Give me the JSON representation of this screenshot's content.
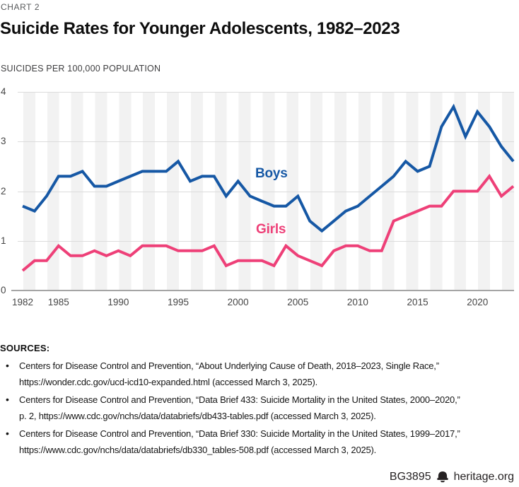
{
  "header": {
    "kicker": "CHART 2",
    "title": "Suicide Rates for Younger Adolescents, 1982–2023",
    "subtitle": "SUICIDES PER 100,000 POPULATION"
  },
  "chart_data": {
    "type": "line",
    "title": "Suicide Rates for Younger Adolescents, 1982–2023",
    "ylabel": "SUICIDES PER 100,000 POPULATION",
    "xlabel": "",
    "xlim": [
      1982,
      2023
    ],
    "ylim": [
      0,
      4
    ],
    "grid": "horizontal",
    "legend": "inline-labels",
    "xticks": [
      1982,
      1985,
      1990,
      1995,
      2000,
      2005,
      2010,
      2015,
      2020
    ],
    "yticks": [
      0,
      1,
      2,
      3,
      4
    ],
    "x": [
      1982,
      1983,
      1984,
      1985,
      1986,
      1987,
      1988,
      1989,
      1990,
      1991,
      1992,
      1993,
      1994,
      1995,
      1996,
      1997,
      1998,
      1999,
      2000,
      2001,
      2002,
      2003,
      2004,
      2005,
      2006,
      2007,
      2008,
      2009,
      2010,
      2011,
      2012,
      2013,
      2014,
      2015,
      2016,
      2017,
      2018,
      2019,
      2020,
      2021,
      2022,
      2023
    ],
    "series": [
      {
        "name": "Boys",
        "color": "#1658a5",
        "values": [
          1.7,
          1.6,
          1.9,
          2.3,
          2.3,
          2.4,
          2.1,
          2.1,
          2.2,
          2.3,
          2.4,
          2.4,
          2.4,
          2.6,
          2.2,
          2.3,
          2.3,
          1.9,
          2.2,
          1.9,
          1.8,
          1.7,
          1.7,
          1.9,
          1.4,
          1.2,
          1.4,
          1.6,
          1.7,
          1.9,
          2.1,
          2.3,
          2.6,
          2.4,
          2.5,
          3.3,
          3.7,
          3.1,
          3.6,
          3.3,
          2.9,
          2.6
        ]
      },
      {
        "name": "Girls",
        "color": "#ee4078",
        "values": [
          0.4,
          0.6,
          0.6,
          0.9,
          0.7,
          0.7,
          0.8,
          0.7,
          0.8,
          0.7,
          0.9,
          0.9,
          0.9,
          0.8,
          0.8,
          0.8,
          0.9,
          0.5,
          0.6,
          0.6,
          0.6,
          0.5,
          0.9,
          0.7,
          0.6,
          0.5,
          0.8,
          0.9,
          0.9,
          0.8,
          0.8,
          1.4,
          1.5,
          1.6,
          1.7,
          1.7,
          2.0,
          2.0,
          2.0,
          2.3,
          1.9,
          2.1
        ]
      }
    ]
  },
  "sources": {
    "heading": "SOURCES:",
    "items": [
      {
        "lines": [
          "Centers for Disease Control and Prevention, “About Underlying Cause of Death, 2018–2023, Single Race,”",
          "https://wonder.cdc.gov/ucd-icd10-expanded.html (accessed March 3, 2025)."
        ]
      },
      {
        "lines": [
          "Centers for Disease Control and Prevention, “Data Brief 433: Suicide Mortality in the United States, 2000–2020,”",
          "p. 2, https://www.cdc.gov/nchs/data/databriefs/db433-tables.pdf (accessed March 3, 2025)."
        ]
      },
      {
        "lines": [
          "Centers for Disease Control and Prevention, “Data Brief 330: Suicide Mortality in the United States, 1999–2017,”",
          "https://www.cdc.gov/nchs/data/databriefs/db330_tables-508.pdf (accessed March 3, 2025)."
        ]
      }
    ]
  },
  "footer": {
    "report_id": "BG3895",
    "website": "heritage.org",
    "logo": "heritage-bell-icon"
  }
}
